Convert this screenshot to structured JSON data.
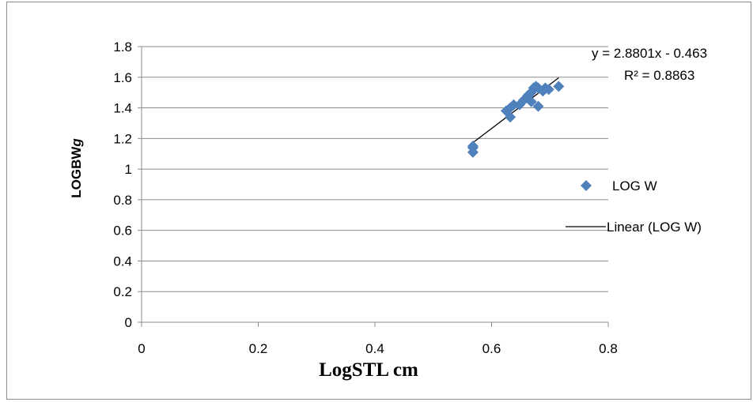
{
  "chart_data": {
    "type": "scatter",
    "title": "",
    "xlabel": "LogSTL cm",
    "ylabel_main": "LOGBW",
    "ylabel_suffix": "g",
    "xlim": [
      0,
      0.8
    ],
    "ylim": [
      0,
      1.8
    ],
    "x_ticks": [
      "0",
      "0.2",
      "0.4",
      "0.6",
      "0.8"
    ],
    "y_ticks": [
      "0",
      "0.2",
      "0.4",
      "0.6",
      "0.8",
      "1",
      "1.2",
      "1.4",
      "1.6",
      "1.8"
    ],
    "grid": "horizontal",
    "legend_position": "right",
    "series": [
      {
        "name": "LOG W",
        "marker": "diamond",
        "color": "#4f81bd",
        "x": [
          0.568,
          0.568,
          0.568,
          0.625,
          0.632,
          0.638,
          0.632,
          0.648,
          0.655,
          0.662,
          0.668,
          0.672,
          0.676,
          0.68,
          0.688,
          0.692,
          0.698,
          0.715,
          0.68,
          0.668
        ],
        "y": [
          1.11,
          1.14,
          1.15,
          1.38,
          1.4,
          1.42,
          1.34,
          1.42,
          1.45,
          1.48,
          1.5,
          1.53,
          1.54,
          1.53,
          1.51,
          1.53,
          1.52,
          1.54,
          1.41,
          1.44
        ]
      }
    ],
    "trendline": {
      "name": "Linear (LOG W)",
      "color": "#000000",
      "x_range": [
        0.568,
        0.715
      ],
      "slope": 2.8801,
      "intercept": -0.463
    },
    "annotations": {
      "equation": "y = 2.8801x - 0.463",
      "r_squared": "R² = 0.8863"
    }
  }
}
